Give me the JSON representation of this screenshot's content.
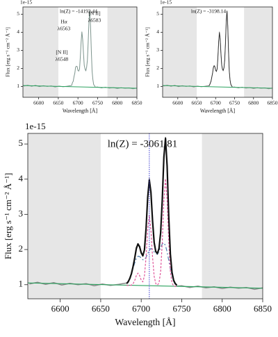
{
  "chart_data": [
    {
      "type": "line",
      "annotations": [
        "ln(Z) = -14192.44",
        "[N II]",
        "λ6548",
        "Hα",
        "λ6563",
        "[N II]",
        "λ6583"
      ],
      "x_label": "Wavelength [Å]",
      "y_label": "Flux [erg s⁻¹ cm⁻² Å⁻¹]",
      "y_offset_label": "1e-15",
      "xlim": [
        6560,
        6850
      ],
      "ylim": [
        0.4,
        5.4
      ],
      "xticks": [
        6600,
        6650,
        6700,
        6750,
        6800,
        6850
      ],
      "yticks": [
        1,
        2,
        3,
        4,
        5
      ],
      "shaded": [
        [
          6560,
          6650
        ],
        [
          6775,
          6850
        ]
      ],
      "shade_color": "#e6e6e6",
      "series": [
        {
          "color": "#7d948d",
          "width": 1,
          "x": [
            6562,
            6572,
            6582,
            6592,
            6602,
            6612,
            6622,
            6632,
            6642,
            6652,
            6662,
            6672,
            6682,
            6684,
            6686,
            6688,
            6690,
            6692,
            6694,
            6696,
            6698,
            6700,
            6702,
            6704,
            6706,
            6708,
            6710,
            6712,
            6714,
            6716,
            6718,
            6720,
            6722,
            6724,
            6726,
            6728,
            6730,
            6732,
            6734,
            6736,
            6738,
            6740,
            6742,
            6744,
            6750,
            6760,
            6770,
            6780,
            6790,
            6800,
            6810,
            6820,
            6830,
            6840,
            6850
          ],
          "values": [
            1.02,
            1.07,
            1.01,
            1.06,
            0.99,
            1.04,
            1.0,
            1.03,
            0.97,
            1.02,
            0.98,
            1.01,
            1.05,
            1.06,
            1.21,
            1.29,
            1.55,
            1.73,
            2.07,
            2.12,
            2.1,
            1.88,
            1.85,
            1.96,
            2.63,
            3.45,
            4.02,
            3.6,
            2.85,
            2.17,
            1.97,
            1.86,
            2.05,
            2.45,
            3.44,
            4.6,
            5.19,
            4.35,
            2.97,
            1.84,
            1.38,
            1.1,
            1.05,
            0.96,
            0.97,
            0.92,
            0.96,
            0.91,
            0.94,
            0.89,
            0.93,
            0.9,
            0.92,
            0.87,
            0.91
          ]
        },
        {
          "color": "#2ca25f",
          "width": 1,
          "x": [
            6560,
            6850
          ],
          "values": [
            1.05,
            0.9
          ]
        }
      ]
    },
    {
      "type": "line",
      "annotations": [
        "ln(Z) = -3198.14"
      ],
      "x_label": "Wavelength [Å]",
      "y_label": "Flux [erg s⁻¹ cm⁻² Å⁻¹]",
      "y_offset_label": "1e-15",
      "xlim": [
        6560,
        6850
      ],
      "ylim": [
        0.4,
        5.4
      ],
      "xticks": [
        6600,
        6650,
        6700,
        6750,
        6800,
        6850
      ],
      "yticks": [
        1,
        2,
        3,
        4,
        5
      ],
      "shaded": [
        [
          6560,
          6650
        ],
        [
          6775,
          6850
        ]
      ],
      "shade_color": "#e6e6e6",
      "series": [
        {
          "color": "#8a8a8a",
          "width": 1,
          "x": [
            6562,
            6572,
            6582,
            6592,
            6602,
            6612,
            6622,
            6632,
            6642,
            6652,
            6662,
            6672,
            6682,
            6684,
            6686,
            6688,
            6690,
            6692,
            6694,
            6696,
            6698,
            6700,
            6702,
            6704,
            6706,
            6708,
            6710,
            6712,
            6714,
            6716,
            6718,
            6720,
            6722,
            6724,
            6726,
            6728,
            6730,
            6732,
            6734,
            6736,
            6738,
            6740,
            6742,
            6744,
            6750,
            6760,
            6770,
            6780,
            6790,
            6800,
            6810,
            6820,
            6830,
            6840,
            6850
          ],
          "values": [
            1.02,
            1.07,
            1.01,
            1.06,
            0.99,
            1.04,
            1.0,
            1.03,
            0.97,
            1.02,
            0.98,
            1.01,
            1.05,
            1.06,
            1.21,
            1.29,
            1.55,
            1.73,
            2.07,
            2.12,
            2.1,
            1.88,
            1.85,
            1.96,
            2.63,
            3.45,
            4.02,
            3.6,
            2.85,
            2.17,
            1.97,
            1.86,
            2.05,
            2.45,
            3.44,
            4.6,
            5.19,
            4.35,
            2.97,
            1.84,
            1.38,
            1.1,
            1.05,
            0.96,
            0.97,
            0.92,
            0.96,
            0.91,
            0.94,
            0.89,
            0.93,
            0.9,
            0.92,
            0.87,
            0.91
          ]
        },
        {
          "color": "#2ca25f",
          "width": 1,
          "x": [
            6560,
            6850
          ],
          "values": [
            1.05,
            0.9
          ]
        },
        {
          "color": "#222222",
          "width": 0.8,
          "x": [
            6682,
            6684,
            6686,
            6688,
            6690,
            6692,
            6694,
            6696,
            6698,
            6700,
            6702,
            6704,
            6706,
            6708,
            6710,
            6712,
            6714,
            6716,
            6718,
            6720,
            6722,
            6724,
            6726,
            6728,
            6730,
            6732,
            6734,
            6736,
            6738,
            6740,
            6742,
            6744
          ],
          "values": [
            1.03,
            1.09,
            1.18,
            1.32,
            1.52,
            1.76,
            2.03,
            2.16,
            2.08,
            1.91,
            1.82,
            1.99,
            2.6,
            3.48,
            3.98,
            3.63,
            2.82,
            2.2,
            1.94,
            1.89,
            2.03,
            2.48,
            3.41,
            4.63,
            5.16,
            4.37,
            2.94,
            1.87,
            1.35,
            1.13,
            1.03,
            0.99
          ]
        }
      ]
    },
    {
      "type": "line",
      "annotations": [
        "ln(Z) = -3061.81"
      ],
      "x_label": "Wavelength [Å]",
      "y_label": "Flux [erg s⁻¹ cm⁻² Å⁻¹]",
      "y_offset_label": "1e-15",
      "xlim": [
        6560,
        6850
      ],
      "ylim": [
        0.6,
        5.3
      ],
      "xticks": [
        6600,
        6650,
        6700,
        6750,
        6800,
        6850
      ],
      "yticks": [
        1,
        2,
        3,
        4,
        5
      ],
      "shaded": [
        [
          6560,
          6650
        ],
        [
          6775,
          6850
        ]
      ],
      "shade_color": "#e6e6e6",
      "vline": 6710,
      "vline_color": "#3a3ad0",
      "series": [
        {
          "color": "#8a8a8a",
          "width": 1.5,
          "x": [
            6562,
            6572,
            6582,
            6592,
            6602,
            6612,
            6622,
            6632,
            6642,
            6652,
            6662,
            6672,
            6682,
            6684,
            6686,
            6688,
            6690,
            6692,
            6694,
            6696,
            6698,
            6700,
            6702,
            6704,
            6706,
            6708,
            6710,
            6712,
            6714,
            6716,
            6718,
            6720,
            6722,
            6724,
            6726,
            6728,
            6730,
            6732,
            6734,
            6736,
            6738,
            6740,
            6742,
            6744,
            6750,
            6760,
            6770,
            6780,
            6790,
            6800,
            6810,
            6820,
            6830,
            6840,
            6850
          ],
          "values": [
            1.02,
            1.07,
            1.01,
            1.06,
            0.99,
            1.04,
            1.0,
            1.03,
            0.97,
            1.02,
            0.98,
            1.01,
            1.05,
            1.06,
            1.21,
            1.29,
            1.55,
            1.73,
            2.07,
            2.12,
            2.1,
            1.88,
            1.85,
            1.96,
            2.63,
            3.45,
            4.02,
            3.6,
            2.85,
            2.17,
            1.97,
            1.86,
            2.05,
            2.45,
            3.44,
            4.6,
            5.19,
            4.35,
            2.97,
            1.84,
            1.38,
            1.1,
            1.05,
            0.96,
            0.97,
            0.92,
            0.96,
            0.91,
            0.94,
            0.89,
            0.93,
            0.9,
            0.92,
            0.87,
            0.91
          ]
        },
        {
          "color": "#2ca25f",
          "width": 1.2,
          "x": [
            6560,
            6850
          ],
          "values": [
            1.05,
            0.9
          ]
        },
        {
          "color": "#4f7fb0",
          "width": 1.2,
          "dash": "6 3 2 3",
          "x": [
            6682,
            6684,
            6686,
            6688,
            6690,
            6692,
            6694,
            6696,
            6698,
            6700,
            6702,
            6704,
            6706,
            6708,
            6710,
            6712,
            6714,
            6716,
            6718,
            6720,
            6722,
            6724,
            6726,
            6728,
            6730,
            6732,
            6734,
            6736,
            6738,
            6740,
            6742,
            6744
          ],
          "values": [
            1.03,
            1.09,
            1.18,
            1.31,
            1.47,
            1.62,
            1.75,
            1.81,
            1.8,
            1.76,
            1.71,
            1.71,
            1.78,
            1.88,
            1.98,
            2.03,
            2.0,
            1.93,
            1.88,
            1.87,
            1.94,
            2.06,
            2.16,
            2.19,
            2.11,
            1.93,
            1.69,
            1.45,
            1.26,
            1.12,
            1.03,
            0.99
          ]
        },
        {
          "color": "#e0559a",
          "width": 1.2,
          "dash": "3 2",
          "x": [
            6682,
            6684,
            6686,
            6688,
            6690,
            6692,
            6694,
            6696,
            6698,
            6700,
            6702,
            6704,
            6706,
            6708,
            6710,
            6712,
            6714,
            6716,
            6718,
            6720,
            6722,
            6724,
            6726,
            6728,
            6730,
            6732,
            6734,
            6736,
            6738,
            6740,
            6742,
            6744
          ],
          "values": [
            0.98,
            0.98,
            0.98,
            0.99,
            1.03,
            1.12,
            1.26,
            1.33,
            1.26,
            1.13,
            1.08,
            1.25,
            1.79,
            2.57,
            2.97,
            2.57,
            1.79,
            1.24,
            1.03,
            0.99,
            1.05,
            1.38,
            2.21,
            3.4,
            4.01,
            3.4,
            2.21,
            1.38,
            1.05,
            0.97,
            0.95,
            0.95
          ]
        },
        {
          "color": "#111111",
          "width": 2.2,
          "x": [
            6682,
            6684,
            6686,
            6688,
            6690,
            6692,
            6694,
            6696,
            6698,
            6700,
            6702,
            6704,
            6706,
            6708,
            6710,
            6712,
            6714,
            6716,
            6718,
            6720,
            6722,
            6724,
            6726,
            6728,
            6730,
            6732,
            6734,
            6736,
            6738,
            6740,
            6742,
            6744
          ],
          "values": [
            1.03,
            1.09,
            1.18,
            1.32,
            1.52,
            1.76,
            2.03,
            2.16,
            2.08,
            1.91,
            1.82,
            1.99,
            2.6,
            3.48,
            3.98,
            3.63,
            2.82,
            2.2,
            1.94,
            1.89,
            2.03,
            2.48,
            3.41,
            4.63,
            5.16,
            4.37,
            2.94,
            1.87,
            1.35,
            1.13,
            1.03,
            0.99
          ]
        }
      ]
    }
  ]
}
